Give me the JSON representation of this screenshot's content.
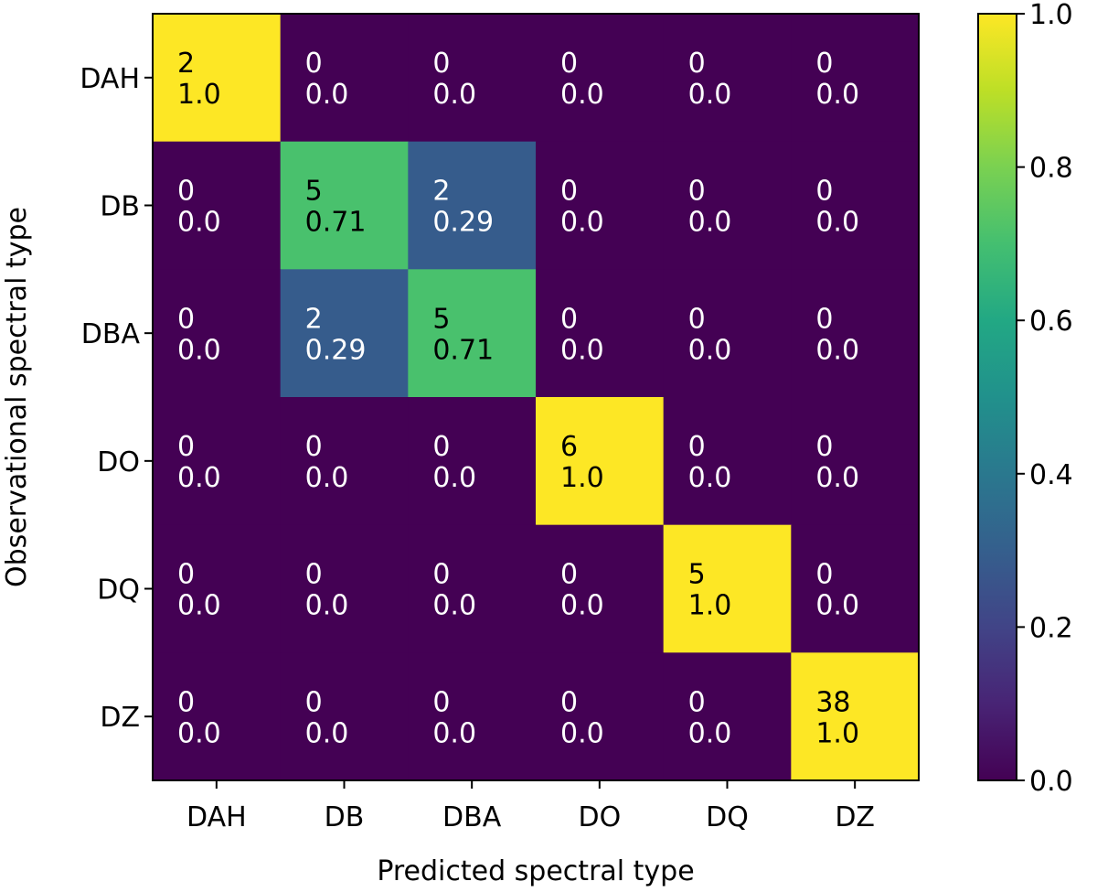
{
  "chart_data": {
    "type": "heatmap",
    "title": "",
    "xlabel": "Predicted spectral type",
    "ylabel": "Observational spectral type",
    "x_categories": [
      "DAH",
      "DB",
      "DBA",
      "DO",
      "DQ",
      "DZ"
    ],
    "y_categories": [
      "DAH",
      "DB",
      "DBA",
      "DO",
      "DQ",
      "DZ"
    ],
    "counts": [
      [
        2,
        0,
        0,
        0,
        0,
        0
      ],
      [
        0,
        5,
        2,
        0,
        0,
        0
      ],
      [
        0,
        2,
        5,
        0,
        0,
        0
      ],
      [
        0,
        0,
        0,
        6,
        0,
        0
      ],
      [
        0,
        0,
        0,
        0,
        5,
        0
      ],
      [
        0,
        0,
        0,
        0,
        0,
        38
      ]
    ],
    "fractions": [
      [
        "1.0",
        "0.0",
        "0.0",
        "0.0",
        "0.0",
        "0.0"
      ],
      [
        "0.0",
        "0.71",
        "0.29",
        "0.0",
        "0.0",
        "0.0"
      ],
      [
        "0.0",
        "0.29",
        "0.71",
        "0.0",
        "0.0",
        "0.0"
      ],
      [
        "0.0",
        "0.0",
        "0.0",
        "1.0",
        "0.0",
        "0.0"
      ],
      [
        "0.0",
        "0.0",
        "0.0",
        "0.0",
        "1.0",
        "0.0"
      ],
      [
        "0.0",
        "0.0",
        "0.0",
        "0.0",
        "0.0",
        "1.0"
      ]
    ],
    "colorbar": {
      "colormap": "viridis",
      "range": [
        0.0,
        1.0
      ],
      "ticks": [
        "0.0",
        "0.2",
        "0.4",
        "0.6",
        "0.8",
        "1.0"
      ]
    },
    "grid": false
  }
}
